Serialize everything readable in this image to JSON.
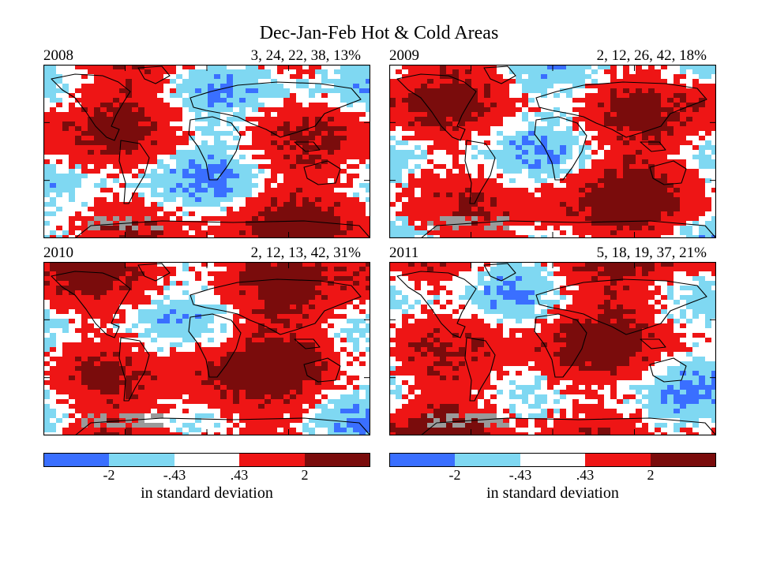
{
  "title": "Dec-Jan-Feb Hot & Cold Areas",
  "colors": {
    "very_cold": "#3a6fff",
    "cold": "#7fd8f2",
    "normal": "#ffffff",
    "warm": "#ee1515",
    "very_warm": "#7a0c0c",
    "missing": "#9a9a9a",
    "land_outline": "#000000"
  },
  "panels": [
    {
      "year": "2008",
      "percentages": "3, 24, 22, 38, 13%"
    },
    {
      "year": "2009",
      "percentages": "2, 12, 26, 42, 18%"
    },
    {
      "year": "2010",
      "percentages": "2, 12, 13, 42, 31%"
    },
    {
      "year": "2011",
      "percentages": "5, 18, 19, 37, 21%"
    }
  ],
  "scale": {
    "ticks": [
      "-2",
      "-.43",
      ".43",
      "2"
    ],
    "label": "in standard deviation"
  }
}
